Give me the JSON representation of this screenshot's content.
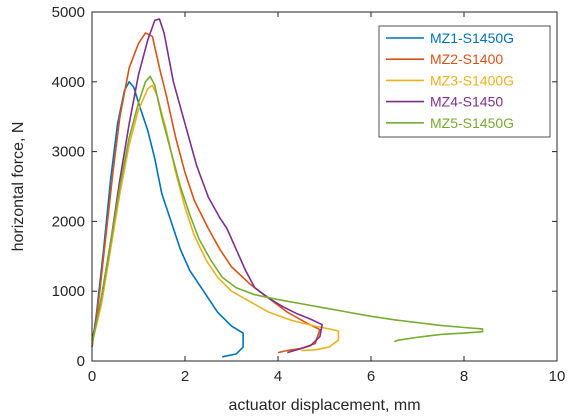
{
  "chart_data": {
    "type": "line",
    "title": "",
    "xlabel": "actuator displacement, mm",
    "ylabel": "horizontal force, N",
    "xlim": [
      0,
      10
    ],
    "ylim": [
      0,
      5000
    ],
    "xticks": [
      0,
      2,
      4,
      6,
      8,
      10
    ],
    "yticks": [
      0,
      1000,
      2000,
      3000,
      4000,
      5000
    ],
    "grid": false,
    "legend_position": "top-right",
    "series": [
      {
        "name": "MZ1-S1450G",
        "color": "#0072bd",
        "points": [
          [
            0.0,
            200
          ],
          [
            0.1,
            700
          ],
          [
            0.25,
            1600
          ],
          [
            0.4,
            2600
          ],
          [
            0.55,
            3400
          ],
          [
            0.7,
            3880
          ],
          [
            0.8,
            4000
          ],
          [
            0.9,
            3920
          ],
          [
            1.0,
            3700
          ],
          [
            1.1,
            3500
          ],
          [
            1.2,
            3300
          ],
          [
            1.35,
            2900
          ],
          [
            1.5,
            2400
          ],
          [
            1.7,
            2000
          ],
          [
            1.9,
            1600
          ],
          [
            2.1,
            1300
          ],
          [
            2.4,
            1000
          ],
          [
            2.7,
            700
          ],
          [
            3.0,
            500
          ],
          [
            3.25,
            400
          ],
          [
            3.25,
            200
          ],
          [
            3.1,
            100
          ],
          [
            2.8,
            60
          ]
        ]
      },
      {
        "name": "MZ2-S1400",
        "color": "#d95319",
        "points": [
          [
            0.0,
            200
          ],
          [
            0.15,
            900
          ],
          [
            0.3,
            1800
          ],
          [
            0.45,
            2700
          ],
          [
            0.6,
            3500
          ],
          [
            0.8,
            4200
          ],
          [
            1.0,
            4550
          ],
          [
            1.15,
            4700
          ],
          [
            1.3,
            4650
          ],
          [
            1.45,
            4200
          ],
          [
            1.6,
            3800
          ],
          [
            1.8,
            3200
          ],
          [
            2.0,
            2700
          ],
          [
            2.2,
            2300
          ],
          [
            2.5,
            1900
          ],
          [
            2.75,
            1600
          ],
          [
            3.0,
            1350
          ],
          [
            3.4,
            1100
          ],
          [
            3.8,
            900
          ],
          [
            4.2,
            700
          ],
          [
            4.6,
            550
          ],
          [
            4.9,
            450
          ],
          [
            4.8,
            250
          ],
          [
            4.5,
            180
          ],
          [
            4.2,
            150
          ],
          [
            4.0,
            120
          ]
        ]
      },
      {
        "name": "MZ3-S1400G",
        "color": "#edb120",
        "points": [
          [
            0.0,
            250
          ],
          [
            0.2,
            800
          ],
          [
            0.4,
            1600
          ],
          [
            0.6,
            2400
          ],
          [
            0.8,
            3100
          ],
          [
            1.0,
            3600
          ],
          [
            1.2,
            3900
          ],
          [
            1.3,
            3950
          ],
          [
            1.4,
            3800
          ],
          [
            1.6,
            3300
          ],
          [
            1.8,
            2700
          ],
          [
            2.0,
            2200
          ],
          [
            2.2,
            1800
          ],
          [
            2.45,
            1450
          ],
          [
            2.7,
            1200
          ],
          [
            3.0,
            1000
          ],
          [
            3.4,
            850
          ],
          [
            3.8,
            700
          ],
          [
            4.3,
            580
          ],
          [
            4.8,
            500
          ],
          [
            5.1,
            460
          ],
          [
            5.3,
            430
          ],
          [
            5.3,
            300
          ],
          [
            5.1,
            200
          ],
          [
            4.8,
            160
          ],
          [
            4.5,
            150
          ]
        ]
      },
      {
        "name": "MZ4-S1450",
        "color": "#7e2f8e",
        "points": [
          [
            0.0,
            300
          ],
          [
            0.2,
            900
          ],
          [
            0.4,
            1700
          ],
          [
            0.6,
            2600
          ],
          [
            0.8,
            3400
          ],
          [
            1.0,
            4100
          ],
          [
            1.2,
            4600
          ],
          [
            1.35,
            4880
          ],
          [
            1.45,
            4900
          ],
          [
            1.55,
            4700
          ],
          [
            1.75,
            4000
          ],
          [
            2.0,
            3400
          ],
          [
            2.25,
            2800
          ],
          [
            2.5,
            2350
          ],
          [
            2.75,
            2050
          ],
          [
            2.9,
            1900
          ],
          [
            3.1,
            1600
          ],
          [
            3.3,
            1300
          ],
          [
            3.5,
            1050
          ],
          [
            3.8,
            900
          ],
          [
            4.1,
            780
          ],
          [
            4.4,
            680
          ],
          [
            4.7,
            600
          ],
          [
            4.95,
            520
          ],
          [
            4.9,
            350
          ],
          [
            4.7,
            220
          ],
          [
            4.4,
            160
          ],
          [
            4.2,
            120
          ]
        ]
      },
      {
        "name": "MZ5-S1450G",
        "color": "#77ac30",
        "points": [
          [
            0.0,
            250
          ],
          [
            0.2,
            900
          ],
          [
            0.4,
            1700
          ],
          [
            0.6,
            2500
          ],
          [
            0.8,
            3200
          ],
          [
            1.0,
            3700
          ],
          [
            1.15,
            4000
          ],
          [
            1.25,
            4080
          ],
          [
            1.35,
            3950
          ],
          [
            1.5,
            3500
          ],
          [
            1.7,
            3000
          ],
          [
            1.9,
            2500
          ],
          [
            2.1,
            2100
          ],
          [
            2.3,
            1750
          ],
          [
            2.55,
            1450
          ],
          [
            2.8,
            1200
          ],
          [
            3.1,
            1050
          ],
          [
            3.5,
            950
          ],
          [
            4.0,
            880
          ],
          [
            4.5,
            820
          ],
          [
            5.0,
            760
          ],
          [
            5.5,
            700
          ],
          [
            6.0,
            640
          ],
          [
            6.5,
            590
          ],
          [
            7.0,
            550
          ],
          [
            7.5,
            510
          ],
          [
            8.0,
            480
          ],
          [
            8.4,
            460
          ],
          [
            8.4,
            420
          ],
          [
            8.0,
            400
          ],
          [
            7.5,
            380
          ],
          [
            7.0,
            340
          ],
          [
            6.6,
            300
          ],
          [
            6.5,
            280
          ]
        ]
      }
    ]
  }
}
